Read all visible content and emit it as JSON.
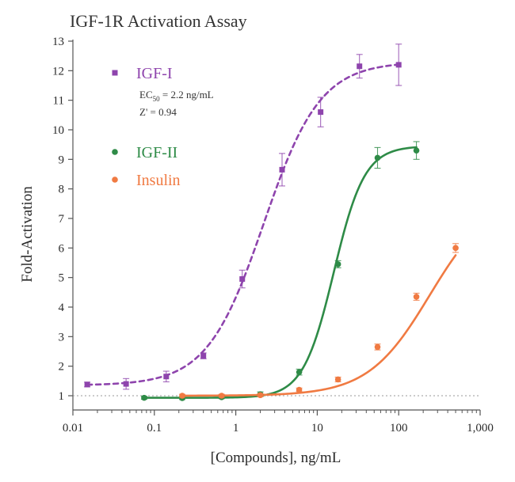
{
  "chart_data": {
    "type": "scatter",
    "title": "IGF-1R Activation Assay",
    "xlabel": "[Compounds], ng/mL",
    "ylabel": "Fold-Activation",
    "x_scale": "log",
    "xlim": [
      0.01,
      1000
    ],
    "ylim": [
      1,
      13
    ],
    "x_ticks": [
      0.01,
      0.1,
      1,
      10,
      100,
      1000
    ],
    "x_tick_labels": [
      "0.01",
      "0.1",
      "1",
      "10",
      "100",
      "1,000"
    ],
    "y_ticks": [
      1,
      2,
      3,
      4,
      5,
      6,
      7,
      8,
      9,
      10,
      11,
      12,
      13
    ],
    "y_tick_labels": [
      "1",
      "2",
      "3",
      "4",
      "5",
      "6",
      "7",
      "8",
      "9",
      "10",
      "11",
      "12",
      "13"
    ],
    "baseline": 1,
    "legend_position": "top-left",
    "annotations": {
      "ec50_prefix": "EC",
      "ec50_sub": "50",
      "ec50_suffix": "= 2.2 ng/mL",
      "zprime": "Z' = 0.94"
    },
    "series": [
      {
        "name": "IGF-I",
        "color": "#8e44ad",
        "line_style": "dashed",
        "marker": "square",
        "x": [
          0.015,
          0.045,
          0.14,
          0.4,
          1.2,
          3.7,
          11,
          33,
          100
        ],
        "y": [
          1.38,
          1.4,
          1.65,
          2.35,
          4.95,
          8.65,
          10.6,
          12.15,
          12.2
        ],
        "err": [
          0.08,
          0.18,
          0.18,
          0.1,
          0.3,
          0.55,
          0.5,
          0.4,
          0.7
        ],
        "fit": {
          "bottom": 1.35,
          "top": 12.3,
          "ec50": 2.2,
          "hill": 1.25
        }
      },
      {
        "name": "IGF-II",
        "color": "#2e8b47",
        "line_style": "solid",
        "marker": "circle",
        "x": [
          0.075,
          0.22,
          0.67,
          2,
          6,
          18,
          55,
          165
        ],
        "y": [
          0.93,
          0.92,
          0.95,
          1.05,
          1.8,
          5.45,
          9.05,
          9.3
        ],
        "err": [
          0.05,
          0.05,
          0.05,
          0.08,
          0.1,
          0.12,
          0.35,
          0.3
        ],
        "fit": {
          "bottom": 0.93,
          "top": 9.45,
          "ec50": 16,
          "hill": 2.3
        }
      },
      {
        "name": "Insulin",
        "color": "#f07a42",
        "line_style": "solid",
        "marker": "circle",
        "x": [
          0.22,
          0.67,
          2,
          6,
          18,
          55,
          165,
          500
        ],
        "y": [
          1.0,
          1.0,
          1.02,
          1.2,
          1.55,
          2.65,
          4.35,
          6.0
        ],
        "err": [
          0.05,
          0.05,
          0.05,
          0.06,
          0.08,
          0.1,
          0.12,
          0.15
        ],
        "fit": {
          "bottom": 1.0,
          "top": 7.8,
          "ec50": 240,
          "hill": 1.15
        }
      }
    ]
  }
}
